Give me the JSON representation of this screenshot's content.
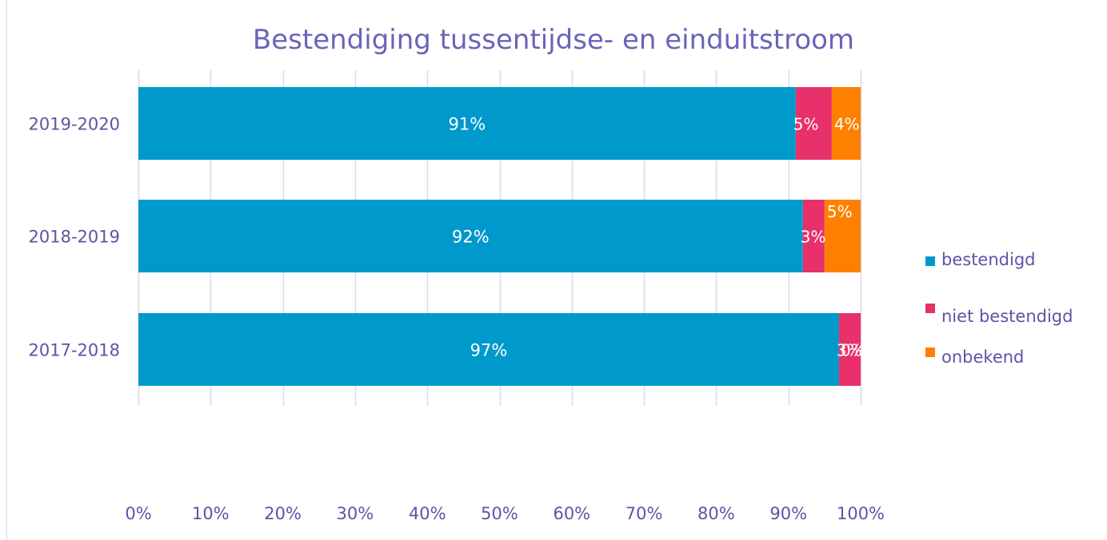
{
  "chart_data": {
    "type": "bar",
    "orientation": "horizontal",
    "stacked": true,
    "title": "Bestendiging tussentijdse- en einduitstroom",
    "categories": [
      "2019-2020",
      "2018-2019",
      "2017-2018"
    ],
    "series": [
      {
        "name": "bestendigd",
        "color": "#0099cc",
        "values": [
          91,
          92,
          97
        ],
        "labels": [
          "91%",
          "92%",
          "97%"
        ]
      },
      {
        "name": "niet bestendigd",
        "color": "#e8306a",
        "values": [
          5,
          3,
          3
        ],
        "labels": [
          "5%",
          "3%",
          "3%"
        ]
      },
      {
        "name": "onbekend",
        "color": "#ff8000",
        "values": [
          4,
          5,
          0
        ],
        "labels": [
          "4%",
          "5%",
          "0%"
        ]
      }
    ],
    "x_ticks": [
      "0%",
      "10%",
      "20%",
      "30%",
      "40%",
      "50%",
      "60%",
      "70%",
      "80%",
      "90%",
      "100%"
    ],
    "xlim": [
      0,
      100
    ],
    "grid": true,
    "legend_position": "right",
    "colors": {
      "text": "#5a55a6",
      "title": "#6a64b8",
      "grid": "#d9d9ea"
    }
  }
}
